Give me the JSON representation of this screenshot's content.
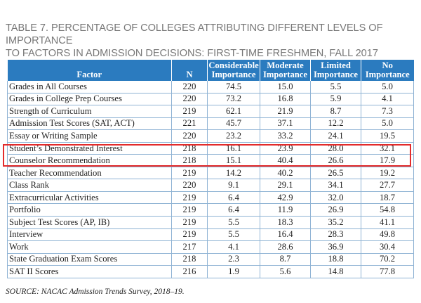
{
  "title": {
    "line1": "TABLE 7. PERCENTAGE OF COLLEGES ATTRIBUTING DIFFERENT LEVELS OF IMPORTANCE",
    "line2": "TO FACTORS IN ADMISSION DECISIONS: FIRST-TIME FRESHMEN, FALL 2017"
  },
  "headers": {
    "factor": "Factor",
    "n": "N",
    "considerable": [
      "Considerable",
      "Importance"
    ],
    "moderate": [
      "Moderate",
      "Importance"
    ],
    "limited": [
      "Limited",
      "Importance"
    ],
    "no": [
      "No",
      "Importance"
    ]
  },
  "rows": [
    {
      "factor": "Grades in All Courses",
      "n": "220",
      "considerable": "74.5",
      "moderate": "15.0",
      "limited": "5.5",
      "no": "5.0"
    },
    {
      "factor": "Grades in College Prep Courses",
      "n": "220",
      "considerable": "73.2",
      "moderate": "16.8",
      "limited": "5.9",
      "no": "4.1"
    },
    {
      "factor": "Strength of Curriculum",
      "n": "219",
      "considerable": "62.1",
      "moderate": "21.9",
      "limited": "8.7",
      "no": "7.3"
    },
    {
      "factor": "Admission Test Scores (SAT, ACT)",
      "n": "221",
      "considerable": "45.7",
      "moderate": "37.1",
      "limited": "12.2",
      "no": "5.0"
    },
    {
      "factor": "Essay or Writing Sample",
      "n": "220",
      "considerable": "23.2",
      "moderate": "33.2",
      "limited": "24.1",
      "no": "19.5"
    },
    {
      "factor": "Student’s Demonstrated Interest",
      "n": "218",
      "considerable": "16.1",
      "moderate": "23.9",
      "limited": "28.0",
      "no": "32.1"
    },
    {
      "factor": "Counselor Recommendation",
      "n": "218",
      "considerable": "15.1",
      "moderate": "40.4",
      "limited": "26.6",
      "no": "17.9"
    },
    {
      "factor": "Teacher Recommendation",
      "n": "219",
      "considerable": "14.2",
      "moderate": "40.2",
      "limited": "26.5",
      "no": "19.2"
    },
    {
      "factor": "Class Rank",
      "n": "220",
      "considerable": "9.1",
      "moderate": "29.1",
      "limited": "34.1",
      "no": "27.7"
    },
    {
      "factor": "Extracurricular Activities",
      "n": "219",
      "considerable": "6.4",
      "moderate": "42.9",
      "limited": "32.0",
      "no": "18.7"
    },
    {
      "factor": "Portfolio",
      "n": "219",
      "considerable": "6.4",
      "moderate": "11.9",
      "limited": "26.9",
      "no": "54.8"
    },
    {
      "factor": "Subject Test Scores (AP, IB)",
      "n": "219",
      "considerable": "5.5",
      "moderate": "18.3",
      "limited": "35.2",
      "no": "41.1"
    },
    {
      "factor": "Interview",
      "n": "219",
      "considerable": "5.5",
      "moderate": "16.4",
      "limited": "28.3",
      "no": "49.8"
    },
    {
      "factor": "Work",
      "n": "217",
      "considerable": "4.1",
      "moderate": "28.6",
      "limited": "36.9",
      "no": "30.4"
    },
    {
      "factor": "State Graduation Exam Scores",
      "n": "218",
      "considerable": "2.3",
      "moderate": "8.7",
      "limited": "18.8",
      "no": "70.2"
    },
    {
      "factor": "SAT II Scores",
      "n": "216",
      "considerable": "1.9",
      "moderate": "5.6",
      "limited": "14.8",
      "no": "77.8"
    }
  ],
  "source": "SOURCE: NACAC Admission Trends Survey, 2018–19.",
  "colors": {
    "header_bg": "#2b7bbf",
    "highlight": "#e32b2b",
    "rule": "#8fb3d4"
  }
}
